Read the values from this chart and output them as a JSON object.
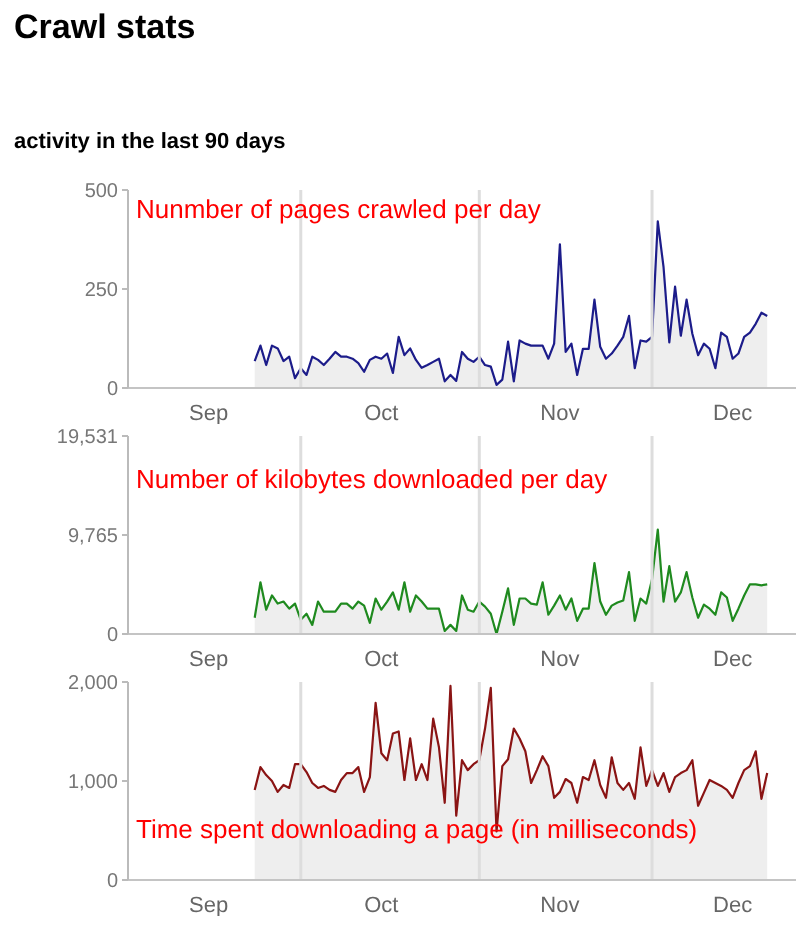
{
  "chart_data": [
    {
      "type": "area",
      "title": "Crawl stats",
      "subtitle": "activity in the last 90 days",
      "annotations": [
        "Nunmber of pages crawled per day"
      ],
      "x": [
        "--09-23",
        "--09-24",
        "--09-25",
        "--09-26",
        "--09-27",
        "--09-28",
        "--09-29",
        "--09-30",
        "--10-01",
        "--10-02",
        "--10-03",
        "--10-04",
        "--10-05",
        "--10-06",
        "--10-07",
        "--10-08",
        "--10-09",
        "--10-10",
        "--10-11",
        "--10-12",
        "--10-13",
        "--10-14",
        "--10-15",
        "--10-16",
        "--10-17",
        "--10-18",
        "--10-19",
        "--10-20",
        "--10-21",
        "--10-22",
        "--10-23",
        "--10-24",
        "--10-25",
        "--10-26",
        "--10-27",
        "--10-28",
        "--10-29",
        "--10-30",
        "--10-31",
        "--11-01",
        "--11-02",
        "--11-03",
        "--11-04",
        "--11-05",
        "--11-06",
        "--11-07",
        "--11-08",
        "--11-09",
        "--11-10",
        "--11-11",
        "--11-12",
        "--11-13",
        "--11-14",
        "--11-15",
        "--11-16",
        "--11-17",
        "--11-18",
        "--11-19",
        "--11-20",
        "--11-21",
        "--11-22",
        "--11-23",
        "--11-24",
        "--11-25",
        "--11-26",
        "--11-27",
        "--11-28",
        "--11-29",
        "--11-30",
        "--12-01",
        "--12-02",
        "--12-03",
        "--12-04",
        "--12-05",
        "--12-06",
        "--12-07",
        "--12-08",
        "--12-09",
        "--12-10",
        "--12-11",
        "--12-12",
        "--12-13",
        "--12-14",
        "--12-15",
        "--12-16",
        "--12-17",
        "--12-18",
        "--12-19",
        "--12-20",
        "--12-21"
      ],
      "series": [
        {
          "color": "#1c1c8a",
          "values": [
            68,
            107,
            58,
            107,
            100,
            68,
            79,
            25,
            50,
            33,
            79,
            71,
            58,
            74,
            91,
            79,
            79,
            74,
            63,
            41,
            71,
            79,
            74,
            87,
            38,
            129,
            83,
            100,
            71,
            51,
            58,
            66,
            74,
            17,
            33,
            18,
            91,
            74,
            66,
            79,
            58,
            54,
            8,
            21,
            117,
            17,
            120,
            112,
            107,
            107,
            107,
            74,
            112,
            363,
            91,
            112,
            33,
            99,
            99,
            223,
            104,
            74,
            87,
            107,
            129,
            182,
            50,
            120,
            117,
            129,
            421,
            305,
            115,
            256,
            132,
            223,
            137,
            83,
            112,
            99,
            50,
            140,
            129,
            74,
            87,
            129,
            140,
            162,
            190,
            182
          ]
        }
      ],
      "xlim": [
        "--09-01",
        "--12-26"
      ],
      "xticks": [
        {
          "value": "--09-15",
          "label": "Sep"
        },
        {
          "value": "--10-15",
          "label": "Oct"
        },
        {
          "value": "--11-15",
          "label": "Nov"
        },
        {
          "value": "--12-15",
          "label": "Dec"
        }
      ],
      "ylim": [
        0,
        500
      ],
      "yticks": [
        0,
        250,
        500
      ],
      "ref_lines": [
        {
          "axis": "x",
          "value": "--10-01",
          "color": "#dddddd"
        },
        {
          "axis": "x",
          "value": "--11-01",
          "color": "#dddddd"
        },
        {
          "axis": "x",
          "value": "--12-01",
          "color": "#dddddd"
        }
      ]
    },
    {
      "type": "area",
      "annotations": [
        "Number of kilobytes downloaded per day"
      ],
      "x": [
        "--09-23",
        "--09-24",
        "--09-25",
        "--09-26",
        "--09-27",
        "--09-28",
        "--09-29",
        "--09-30",
        "--10-01",
        "--10-02",
        "--10-03",
        "--10-04",
        "--10-05",
        "--10-06",
        "--10-07",
        "--10-08",
        "--10-09",
        "--10-10",
        "--10-11",
        "--10-12",
        "--10-13",
        "--10-14",
        "--10-15",
        "--10-16",
        "--10-17",
        "--10-18",
        "--10-19",
        "--10-20",
        "--10-21",
        "--10-22",
        "--10-23",
        "--10-24",
        "--10-25",
        "--10-26",
        "--10-27",
        "--10-28",
        "--10-29",
        "--10-30",
        "--10-31",
        "--11-01",
        "--11-02",
        "--11-03",
        "--11-04",
        "--11-05",
        "--11-06",
        "--11-07",
        "--11-08",
        "--11-09",
        "--11-10",
        "--11-11",
        "--11-12",
        "--11-13",
        "--11-14",
        "--11-15",
        "--11-16",
        "--11-17",
        "--11-18",
        "--11-19",
        "--11-20",
        "--11-21",
        "--11-22",
        "--11-23",
        "--11-24",
        "--11-25",
        "--11-26",
        "--11-27",
        "--11-28",
        "--11-29",
        "--11-30",
        "--12-01",
        "--12-02",
        "--12-03",
        "--12-04",
        "--12-05",
        "--12-06",
        "--12-07",
        "--12-08",
        "--12-09",
        "--12-10",
        "--12-11",
        "--12-12",
        "--12-13",
        "--12-14",
        "--12-15",
        "--12-16",
        "--12-17",
        "--12-18",
        "--12-19",
        "--12-20",
        "--12-21"
      ],
      "series": [
        {
          "color": "#1f8a1f",
          "values": [
            1600,
            5100,
            2400,
            3800,
            3000,
            3200,
            2500,
            3000,
            1400,
            2000,
            900,
            3200,
            2200,
            2200,
            2200,
            3000,
            3000,
            2500,
            3200,
            2800,
            1100,
            3500,
            2400,
            3200,
            4100,
            2400,
            5100,
            2200,
            3800,
            3200,
            2500,
            2500,
            2500,
            300,
            900,
            300,
            3800,
            2400,
            2200,
            3200,
            2700,
            2000,
            0,
            2200,
            4500,
            900,
            3500,
            3500,
            3000,
            2900,
            5100,
            1900,
            2800,
            3800,
            2400,
            3500,
            1300,
            2500,
            2500,
            7000,
            3200,
            1900,
            2800,
            3100,
            3300,
            6100,
            1300,
            3500,
            3000,
            5400,
            10300,
            3200,
            6700,
            3200,
            4100,
            6100,
            3600,
            1600,
            2900,
            2500,
            1900,
            4100,
            3600,
            1300,
            2500,
            3800,
            4900,
            4900,
            4800,
            4900
          ]
        }
      ],
      "xlim": [
        "--09-01",
        "--12-26"
      ],
      "xticks": [
        {
          "value": "--09-15",
          "label": "Sep"
        },
        {
          "value": "--10-15",
          "label": "Oct"
        },
        {
          "value": "--11-15",
          "label": "Nov"
        },
        {
          "value": "--12-15",
          "label": "Dec"
        }
      ],
      "ylim": [
        0,
        19531
      ],
      "yticks": [
        0,
        {
          "value": 9765,
          "label": "9,765"
        },
        {
          "value": 19531,
          "label": "19,531"
        }
      ],
      "ref_lines": [
        {
          "axis": "x",
          "value": "--10-01",
          "color": "#dddddd"
        },
        {
          "axis": "x",
          "value": "--11-01",
          "color": "#dddddd"
        },
        {
          "axis": "x",
          "value": "--12-01",
          "color": "#dddddd"
        }
      ]
    },
    {
      "type": "area",
      "annotations": [
        "Time spent downloading a page (in milliseconds)"
      ],
      "x": [
        "--09-23",
        "--09-24",
        "--09-25",
        "--09-26",
        "--09-27",
        "--09-28",
        "--09-29",
        "--09-30",
        "--10-01",
        "--10-02",
        "--10-03",
        "--10-04",
        "--10-05",
        "--10-06",
        "--10-07",
        "--10-08",
        "--10-09",
        "--10-10",
        "--10-11",
        "--10-12",
        "--10-13",
        "--10-14",
        "--10-15",
        "--10-16",
        "--10-17",
        "--10-18",
        "--10-19",
        "--10-20",
        "--10-21",
        "--10-22",
        "--10-23",
        "--10-24",
        "--10-25",
        "--10-26",
        "--10-27",
        "--10-28",
        "--10-29",
        "--10-30",
        "--10-31",
        "--11-01",
        "--11-02",
        "--11-03",
        "--11-04",
        "--11-05",
        "--11-06",
        "--11-07",
        "--11-08",
        "--11-09",
        "--11-10",
        "--11-11",
        "--11-12",
        "--11-13",
        "--11-14",
        "--11-15",
        "--11-16",
        "--11-17",
        "--11-18",
        "--11-19",
        "--11-20",
        "--11-21",
        "--11-22",
        "--11-23",
        "--11-24",
        "--11-25",
        "--11-26",
        "--11-27",
        "--11-28",
        "--11-29",
        "--11-30",
        "--12-01",
        "--12-02",
        "--12-03",
        "--12-04",
        "--12-05",
        "--12-06",
        "--12-07",
        "--12-08",
        "--12-09",
        "--12-10",
        "--12-11",
        "--12-12",
        "--12-13",
        "--12-14",
        "--12-15",
        "--12-16",
        "--12-17",
        "--12-18",
        "--12-19",
        "--12-20",
        "--12-21"
      ],
      "series": [
        {
          "color": "#8a1414",
          "values": [
            910,
            1140,
            1060,
            1000,
            890,
            960,
            930,
            1170,
            1170,
            1090,
            980,
            930,
            950,
            910,
            890,
            1010,
            1080,
            1080,
            1140,
            890,
            1040,
            1790,
            1280,
            1210,
            1480,
            1500,
            1010,
            1430,
            1010,
            1170,
            1010,
            1630,
            1340,
            780,
            1960,
            650,
            1210,
            1110,
            1170,
            1210,
            1530,
            1940,
            490,
            1150,
            1220,
            1530,
            1430,
            1300,
            980,
            1110,
            1250,
            1150,
            830,
            890,
            1020,
            980,
            780,
            1040,
            1010,
            1210,
            960,
            830,
            1240,
            980,
            910,
            980,
            820,
            1340,
            950,
            1110,
            950,
            1080,
            890,
            1040,
            1080,
            1110,
            1210,
            750,
            880,
            1010,
            980,
            950,
            910,
            830,
            980,
            1110,
            1150,
            1300,
            820,
            1080
          ]
        }
      ],
      "xlim": [
        "--09-01",
        "--12-26"
      ],
      "xticks": [
        {
          "value": "--09-15",
          "label": "Sep"
        },
        {
          "value": "--10-15",
          "label": "Oct"
        },
        {
          "value": "--11-15",
          "label": "Nov"
        },
        {
          "value": "--12-15",
          "label": "Dec"
        }
      ],
      "ylim": [
        0,
        2000
      ],
      "yticks": [
        0,
        {
          "value": 1000,
          "label": "1,000"
        },
        {
          "value": 2000,
          "label": "2,000"
        }
      ],
      "ref_lines": [
        {
          "axis": "x",
          "value": "--10-01",
          "color": "#dddddd"
        },
        {
          "axis": "x",
          "value": "--11-01",
          "color": "#dddddd"
        },
        {
          "axis": "x",
          "value": "--12-01",
          "color": "#dddddd"
        }
      ]
    }
  ]
}
